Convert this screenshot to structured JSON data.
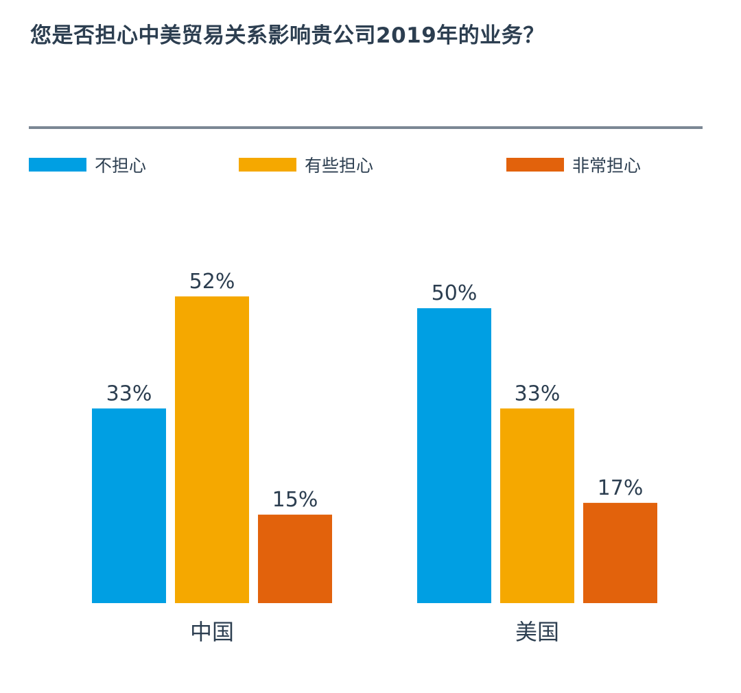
{
  "chart_data": {
    "type": "bar",
    "title": "您是否担心中美贸易关系影响贵公司2019年的业务？",
    "categories": [
      "中国",
      "美国"
    ],
    "series": [
      {
        "name": "不担心",
        "color": "#009fe3",
        "values": [
          33,
          50
        ],
        "labels": [
          "33%",
          "50%"
        ]
      },
      {
        "name": "有些担心",
        "color": "#f5a800",
        "values": [
          52,
          33
        ],
        "labels": [
          "52%",
          "33%"
        ]
      },
      {
        "name": "非常担心",
        "color": "#e2620c",
        "values": [
          15,
          17
        ],
        "labels": [
          "15%",
          "17%"
        ]
      }
    ],
    "ylim": [
      0,
      100
    ],
    "legend_position": "top",
    "grid": false
  },
  "colors": {
    "text": "#2c3e50",
    "rule": "#7b8794"
  }
}
